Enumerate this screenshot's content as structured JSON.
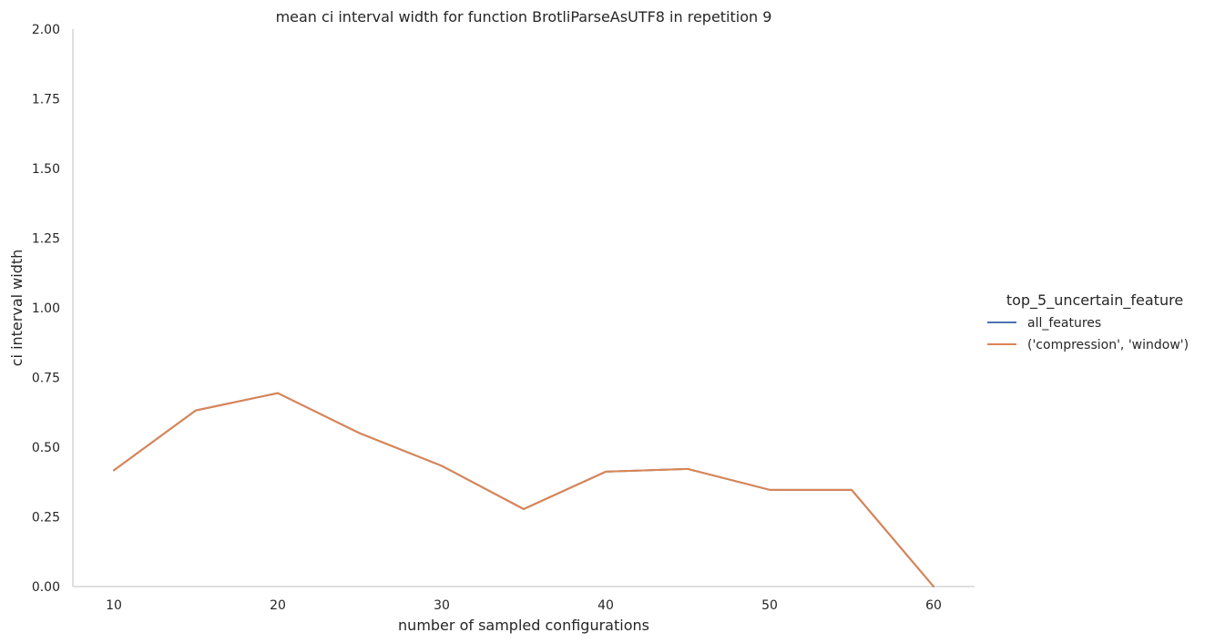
{
  "chart_data": {
    "type": "line",
    "title": "mean ci interval width for function BrotliParseAsUTF8 in repetition 9",
    "xlabel": "number of sampled configurations",
    "ylabel": "ci interval width",
    "xlim": [
      7.5,
      62.5
    ],
    "ylim": [
      0,
      2
    ],
    "xticks": [
      10,
      20,
      30,
      40,
      50,
      60
    ],
    "yticks": [
      0,
      0.25,
      0.5,
      0.75,
      1.0,
      1.25,
      1.5,
      1.75,
      2.0
    ],
    "ytick_labels": [
      "0.00",
      "0.25",
      "0.50",
      "0.75",
      "1.00",
      "1.25",
      "1.50",
      "1.75",
      "2.00"
    ],
    "grid": false,
    "legend": {
      "title": "top_5_uncertain_feature",
      "placement": "right"
    },
    "x": [
      10,
      15,
      20,
      25,
      30,
      35,
      40,
      45,
      50,
      55,
      60
    ],
    "series": [
      {
        "name": "all_features",
        "color": "#4c72b0",
        "values": [
          0.417,
          0.632,
          0.694,
          0.55,
          0.433,
          0.278,
          0.412,
          0.422,
          0.347,
          0.347,
          0.0
        ]
      },
      {
        "name": "('compression', 'window')",
        "color": "#dd8452",
        "values": [
          0.417,
          0.632,
          0.694,
          0.55,
          0.433,
          0.278,
          0.412,
          0.422,
          0.347,
          0.347,
          0.0
        ]
      }
    ]
  }
}
